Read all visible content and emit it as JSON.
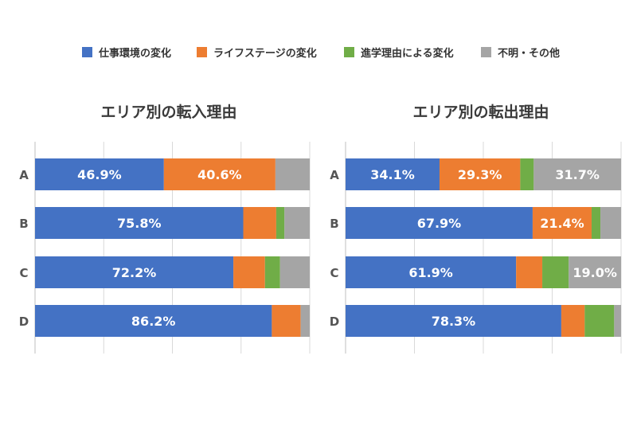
{
  "colors": {
    "work": "#4472C4",
    "life": "#ED7D31",
    "study": "#70AD47",
    "other": "#A5A5A5",
    "grid": "#D9D9D9",
    "axis": "#BFBFBF"
  },
  "legend": [
    {
      "key": "work",
      "label": "仕事環境の変化"
    },
    {
      "key": "life",
      "label": "ライフステージの変化"
    },
    {
      "key": "study",
      "label": "進学理由による変化"
    },
    {
      "key": "other",
      "label": "不明・その他"
    }
  ],
  "chart_data": [
    {
      "type": "bar",
      "orientation": "horizontal",
      "stacked": true,
      "title": "エリア別の転入理由",
      "categories": [
        "A",
        "B",
        "C",
        "D"
      ],
      "xlim": [
        0,
        100
      ],
      "grid": true,
      "series": [
        {
          "name": "仕事環境の変化",
          "key": "work",
          "values": [
            46.9,
            75.8,
            72.2,
            86.2
          ]
        },
        {
          "name": "ライフステージの変化",
          "key": "life",
          "values": [
            40.6,
            12.0,
            11.5,
            10.5
          ]
        },
        {
          "name": "進学理由による変化",
          "key": "study",
          "values": [
            0,
            3.0,
            5.5,
            0
          ]
        },
        {
          "name": "不明・その他",
          "key": "other",
          "values": [
            12.5,
            9.2,
            10.8,
            3.3
          ]
        }
      ],
      "labels": [
        {
          "row": 0,
          "key": "work",
          "text": "46.9%"
        },
        {
          "row": 0,
          "key": "life",
          "text": "40.6%"
        },
        {
          "row": 1,
          "key": "work",
          "text": "75.8%"
        },
        {
          "row": 2,
          "key": "work",
          "text": "72.2%"
        },
        {
          "row": 3,
          "key": "work",
          "text": "86.2%"
        }
      ]
    },
    {
      "type": "bar",
      "orientation": "horizontal",
      "stacked": true,
      "title": "エリア別の転出理由",
      "categories": [
        "A",
        "B",
        "C",
        "D"
      ],
      "xlim": [
        0,
        100
      ],
      "grid": true,
      "series": [
        {
          "name": "仕事環境の変化",
          "key": "work",
          "values": [
            34.1,
            67.9,
            61.9,
            78.3
          ]
        },
        {
          "name": "ライフステージの変化",
          "key": "life",
          "values": [
            29.3,
            21.4,
            9.5,
            8.5
          ]
        },
        {
          "name": "進学理由による変化",
          "key": "study",
          "values": [
            4.9,
            3.2,
            9.6,
            10.7
          ]
        },
        {
          "name": "不明・その他",
          "key": "other",
          "values": [
            31.7,
            7.5,
            19.0,
            2.5
          ]
        }
      ],
      "labels": [
        {
          "row": 0,
          "key": "work",
          "text": "34.1%"
        },
        {
          "row": 0,
          "key": "life",
          "text": "29.3%"
        },
        {
          "row": 0,
          "key": "other",
          "text": "31.7%"
        },
        {
          "row": 1,
          "key": "work",
          "text": "67.9%"
        },
        {
          "row": 1,
          "key": "life",
          "text": "21.4%"
        },
        {
          "row": 2,
          "key": "work",
          "text": "61.9%"
        },
        {
          "row": 2,
          "key": "other",
          "text": "19.0%"
        },
        {
          "row": 3,
          "key": "work",
          "text": "78.3%"
        }
      ]
    }
  ]
}
